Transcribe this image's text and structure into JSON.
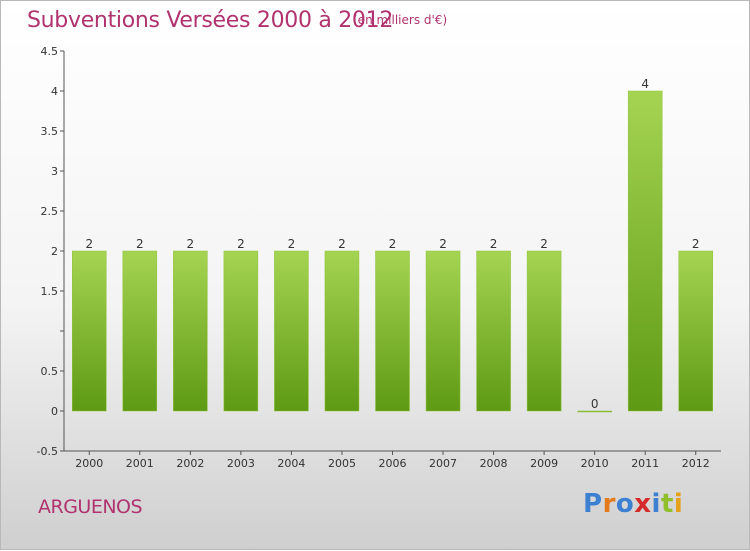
{
  "header": {
    "title": "Subventions Versées 2000 à 2012",
    "subtitle": "(en milliers d'€)"
  },
  "commune": "ARGUENOS",
  "logo": {
    "text": "Proxiti",
    "letter_colors": [
      "#3d7fd0",
      "#e57a1a",
      "#3d7fd0",
      "#d62a2a",
      "#3d7fd0",
      "#8fbf2a",
      "#e5a01a"
    ]
  },
  "colors": {
    "title": "#b0336f",
    "bar_light": "#a5d452",
    "bar_dark": "#5e9a14"
  },
  "chart_data": {
    "type": "bar",
    "categories": [
      "2000",
      "2001",
      "2002",
      "2003",
      "2004",
      "2005",
      "2006",
      "2007",
      "2008",
      "2009",
      "2010",
      "2011",
      "2012"
    ],
    "values": [
      2,
      2,
      2,
      2,
      2,
      2,
      2,
      2,
      2,
      2,
      0,
      4,
      2
    ],
    "data_labels": [
      "2",
      "2",
      "2",
      "2",
      "2",
      "2",
      "2",
      "2",
      "2",
      "2",
      "0",
      "4",
      "2"
    ],
    "y_ticks": [
      -0.5,
      0,
      0.5,
      1,
      1.5,
      2,
      2.5,
      3,
      3.5,
      4,
      4.5
    ],
    "y_tick_labels": [
      "-0.5",
      "0",
      "0.5",
      "",
      "1.5",
      "2",
      "2.5",
      "3",
      "3.5",
      "4",
      "4.5"
    ],
    "ylim": [
      -0.5,
      4.5
    ],
    "title": "Subventions Versées 2000 à 2012",
    "xlabel": "",
    "ylabel": "",
    "grid": false,
    "legend": "none"
  }
}
